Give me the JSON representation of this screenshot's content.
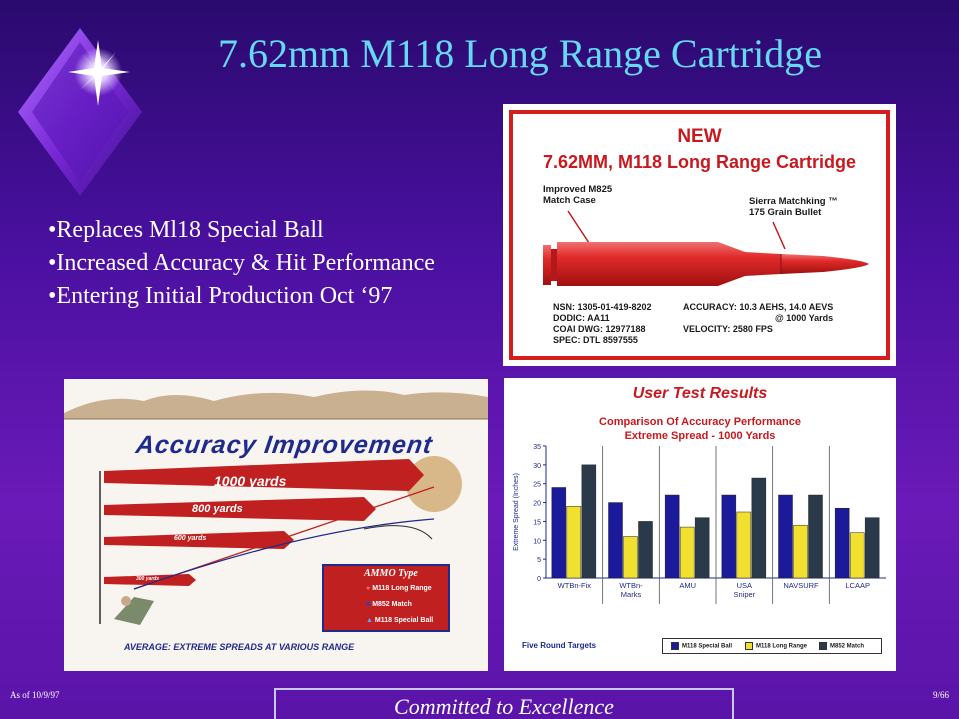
{
  "slide": {
    "title": "7.62mm M118 Long Range Cartridge",
    "bullets": [
      "•Replaces Ml18 Special Ball",
      "•Increased Accuracy & Hit Performance",
      "•Entering Initial Production Oct ‘97"
    ],
    "footer": {
      "date": "As of 10/9/97",
      "page": "9/66",
      "motto": "Committed to Excellence"
    }
  },
  "cartridge_panel": {
    "new_label": "NEW",
    "name": "7.62MM, M118 Long Range Cartridge",
    "case_label_1": "Improved M825",
    "case_label_2": "Match Case",
    "bullet_label_1": "Sierra Matchking ™",
    "bullet_label_2": "175 Grain Bullet",
    "specs_left": [
      "NSN: 1305-01-419-8202",
      "DODIC: AA11",
      "COAI DWG: 12977188",
      "SPEC: DTL 8597555"
    ],
    "specs_right": [
      "ACCURACY:  10.3 AEHS, 14.0 AEVS",
      "@ 1000 Yards",
      "VELOCITY:  2580 FPS"
    ]
  },
  "accuracy_panel": {
    "title": "Accuracy Improvement",
    "ranges": [
      "1000 yards",
      "800 yards",
      "600 yards",
      "300 yards"
    ],
    "average_label": "AVERAGE:  EXTREME SPREADS AT VARIOUS RANGE",
    "ammo_title": "AMMO Type",
    "ammo_items": [
      "M118 Long Range",
      "M852 Match",
      "M118 Special Ball"
    ]
  },
  "results_panel": {
    "title": "User Test Results",
    "subtitle_1": "Comparison Of Accuracy Performance",
    "subtitle_2": "Extreme Spread - 1000 Yards",
    "footer_label": "Five Round Targets"
  },
  "chart_data": {
    "type": "bar",
    "ylabel": "Extreme Spread (Inches)",
    "ylim": [
      0,
      35
    ],
    "yticks": [
      0,
      5,
      10,
      15,
      20,
      25,
      30,
      35
    ],
    "categories": [
      "WTBn-Fix",
      "WTBn-Marks",
      "AMU",
      "USA Sniper",
      "NAVSURF",
      "LCAAP"
    ],
    "category_lines": [
      [
        "WTBn-Fix"
      ],
      [
        "WTBn-",
        "Marks"
      ],
      [
        "AMU"
      ],
      [
        "USA",
        "Sniper"
      ],
      [
        "NAVSURF"
      ],
      [
        "LCAAP"
      ]
    ],
    "series": [
      {
        "name": "M118 Special Ball",
        "color": "#1a1a9a",
        "values": [
          24,
          20,
          22,
          22,
          22,
          18.5
        ]
      },
      {
        "name": "M118 Long Range",
        "color": "#f2e030",
        "values": [
          19,
          11,
          13.5,
          17.5,
          14,
          12
        ]
      },
      {
        "name": "M852 Match",
        "color": "#2a3a4a",
        "values": [
          30,
          15,
          16,
          26.5,
          22,
          16
        ]
      }
    ],
    "grid": false
  },
  "colors": {
    "title": "#66d9f2",
    "accent_red": "#c8191e",
    "navy": "#1e2a8c"
  }
}
